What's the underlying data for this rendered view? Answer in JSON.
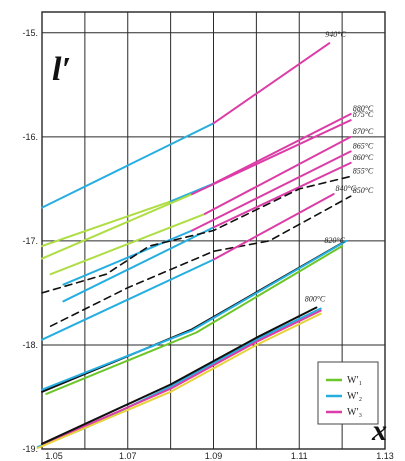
{
  "chart_data": {
    "type": "line",
    "xlabel": "x",
    "ylabel": "l′",
    "xlim": [
      1.05,
      1.13
    ],
    "ylim": [
      -19,
      -14.8
    ],
    "x_ticks": [
      1.05,
      1.07,
      1.09,
      1.11,
      1.13
    ],
    "x_tick_labels": [
      "1.05",
      "1.07",
      "1.09",
      "1.11",
      "1.13"
    ],
    "y_ticks": [
      -15,
      -16,
      -17,
      -18,
      -19
    ],
    "y_tick_labels": [
      "-15.",
      "-16.",
      "-17.",
      "-18.",
      "-19."
    ],
    "grid": true,
    "legend_position": "bottom-right",
    "legend": [
      {
        "label": "W′₁",
        "color": "#6cc62a"
      },
      {
        "label": "W′₂",
        "color": "#26aee0"
      },
      {
        "label": "W′₃",
        "color": "#dc3ca6"
      }
    ],
    "temp_labels": [
      "940°C",
      "880°C",
      "875°C",
      "870°C",
      "865°C",
      "860°C",
      "855°C",
      "850°C",
      "840°C",
      "820°C",
      "800°C"
    ],
    "series": [
      {
        "name": "940°C",
        "segments": [
          {
            "color": "#26aee0",
            "x": [
              1.05,
              1.09
            ],
            "y": [
              -16.68,
              -15.87
            ]
          },
          {
            "color": "#dc3ca6",
            "x": [
              1.09,
              1.117
            ],
            "y": [
              -15.87,
              -15.1
            ]
          }
        ]
      },
      {
        "name": "880°C",
        "segments": [
          {
            "color": "#aedd44",
            "x": [
              1.05,
              1.08
            ],
            "y": [
              -17.05,
              -16.62
            ]
          },
          {
            "color": "#26aee0",
            "x": [
              1.08,
              1.09
            ],
            "y": [
              -16.62,
              -16.45
            ]
          },
          {
            "color": "#dc3ca6",
            "x": [
              1.09,
              1.122
            ],
            "y": [
              -16.45,
              -15.78
            ]
          }
        ]
      },
      {
        "name": "875°C",
        "segments": [
          {
            "color": "#aedd44",
            "x": [
              1.05,
              1.085
            ],
            "y": [
              -17.17,
              -16.55
            ]
          },
          {
            "color": "#dc3ca6",
            "x": [
              1.085,
              1.122
            ],
            "y": [
              -16.55,
              -15.84
            ]
          }
        ]
      },
      {
        "name": "870°C",
        "segments": [
          {
            "color": "#aedd44",
            "x": [
              1.052,
              1.088
            ],
            "y": [
              -17.32,
              -16.74
            ]
          },
          {
            "color": "#dc3ca6",
            "x": [
              1.088,
              1.122
            ],
            "y": [
              -16.74,
              -16.0
            ]
          }
        ]
      },
      {
        "name": "865°C",
        "segments": [
          {
            "color": "#26aee0",
            "x": [
              1.055,
              1.085
            ],
            "y": [
              -17.42,
              -16.9
            ]
          },
          {
            "color": "#dc3ca6",
            "x": [
              1.085,
              1.122
            ],
            "y": [
              -16.9,
              -16.14
            ]
          }
        ]
      },
      {
        "name": "860°C",
        "segments": [
          {
            "color": "#26aee0",
            "x": [
              1.055,
              1.09
            ],
            "y": [
              -17.58,
              -16.87
            ]
          },
          {
            "color": "#dc3ca6",
            "x": [
              1.09,
              1.122
            ],
            "y": [
              -16.87,
              -16.25
            ]
          }
        ]
      },
      {
        "name": "855°C",
        "dashed": true,
        "segments": [
          {
            "color": "#111111",
            "x": [
              1.05,
              1.065,
              1.075,
              1.09,
              1.11,
              1.122
            ],
            "y": [
              -17.5,
              -17.32,
              -17.05,
              -16.9,
              -16.5,
              -16.38
            ]
          }
        ]
      },
      {
        "name": "850°C",
        "dashed": true,
        "segments": [
          {
            "color": "#111111",
            "x": [
              1.052,
              1.07,
              1.09,
              1.103,
              1.122
            ],
            "y": [
              -17.82,
              -17.45,
              -17.1,
              -17.0,
              -16.57
            ]
          }
        ]
      },
      {
        "name": "840°C",
        "segments": [
          {
            "color": "#26aee0",
            "x": [
              1.05,
              1.09
            ],
            "y": [
              -17.95,
              -17.18
            ]
          },
          {
            "color": "#dc3ca6",
            "x": [
              1.09,
              1.118
            ],
            "y": [
              -17.18,
              -16.55
            ]
          }
        ]
      },
      {
        "name": "820°C",
        "segments": [
          {
            "color": "#111111",
            "x": [
              1.05,
              1.085,
              1.12
            ],
            "y": [
              -18.45,
              -17.85,
              -17.02
            ]
          },
          {
            "color": "#26aee0",
            "x": [
              1.05,
              1.085,
              1.121
            ],
            "y": [
              -18.43,
              -17.86,
              -17.0
            ]
          },
          {
            "color": "#6cc62a",
            "x": [
              1.051,
              1.086,
              1.12
            ],
            "y": [
              -18.47,
              -17.88,
              -17.05
            ]
          }
        ]
      },
      {
        "name": "800°C",
        "segments": [
          {
            "color": "#26aee0",
            "x": [
              1.049,
              1.06,
              1.08,
              1.1,
              1.115
            ],
            "y": [
              -18.98,
              -18.8,
              -18.4,
              -17.95,
              -17.65
            ]
          },
          {
            "color": "#dc3ca6",
            "x": [
              1.05,
              1.08,
              1.1,
              1.115
            ],
            "y": [
              -18.96,
              -18.42,
              -17.97,
              -17.67
            ]
          },
          {
            "color": "#e8d23c",
            "x": [
              1.049,
              1.08,
              1.1,
              1.115
            ],
            "y": [
              -18.99,
              -18.45,
              -18.0,
              -17.7
            ]
          },
          {
            "color": "#111111",
            "x": [
              1.05,
              1.08,
              1.1,
              1.114
            ],
            "y": [
              -18.95,
              -18.38,
              -17.93,
              -17.64
            ]
          }
        ]
      }
    ]
  }
}
